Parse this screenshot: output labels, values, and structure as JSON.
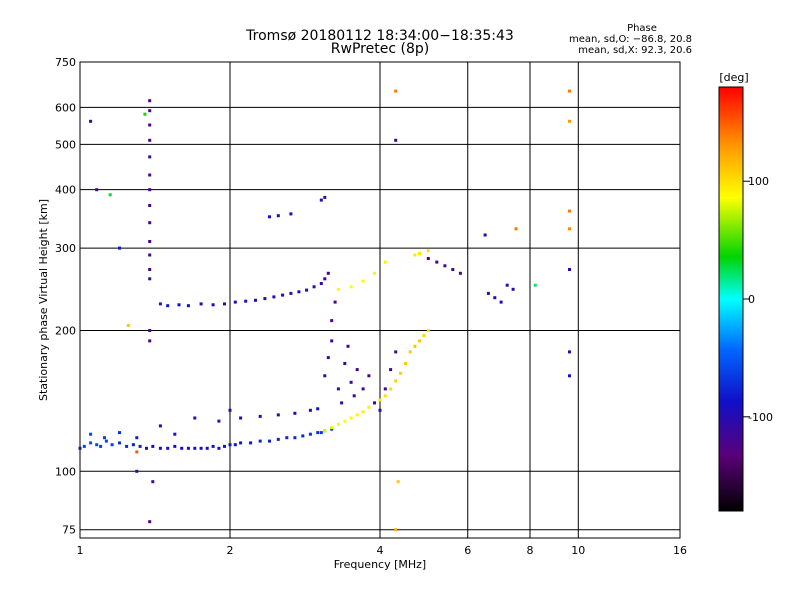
{
  "chart_data": {
    "type": "scatter",
    "title": "Tromsø 20180112 18:34:00−18:35:43",
    "subtitle": "RwPretec (8p)",
    "stats": {
      "heading": "Phase",
      "line1": "mean, sd,O: −86.8, 20.8",
      "line2": "mean, sd,X:  92.3, 20.6"
    },
    "xlabel": "Frequency [MHz]",
    "ylabel": "Stationary phase Virtual Height [km]",
    "xscale": "log",
    "yscale": "log",
    "xlim": [
      1,
      16
    ],
    "ylim": [
      72,
      750
    ],
    "xticks": [
      "1",
      "2",
      "4",
      "6",
      "8",
      "10",
      "16"
    ],
    "yticks": [
      "75",
      "100",
      "200",
      "300",
      "400",
      "500",
      "600",
      "750"
    ],
    "grid": true,
    "colorbar": {
      "title": "[deg]",
      "range": [
        -180,
        180
      ],
      "ticks": [
        "100",
        "0",
        "-100"
      ]
    },
    "series": [
      {
        "points": [
          [
            1.0,
            112,
            -65
          ],
          [
            1.02,
            113,
            -60
          ],
          [
            1.05,
            115,
            -55
          ],
          [
            1.08,
            114,
            -58
          ],
          [
            1.1,
            113,
            -62
          ],
          [
            1.13,
            116,
            -60
          ],
          [
            1.16,
            114,
            -65
          ],
          [
            1.2,
            115,
            -70
          ],
          [
            1.24,
            113,
            -75
          ],
          [
            1.28,
            114,
            -78
          ],
          [
            1.32,
            113,
            -80
          ],
          [
            1.36,
            112,
            -85
          ],
          [
            1.4,
            113,
            -88
          ],
          [
            1.45,
            112,
            -90
          ],
          [
            1.5,
            112,
            -90
          ],
          [
            1.55,
            113,
            -92
          ],
          [
            1.6,
            112,
            -90
          ],
          [
            1.65,
            112,
            -88
          ],
          [
            1.7,
            112,
            -90
          ],
          [
            1.75,
            112,
            -92
          ],
          [
            1.8,
            112,
            -90
          ],
          [
            1.85,
            113,
            -88
          ],
          [
            1.9,
            112,
            -86
          ],
          [
            1.95,
            113,
            -85
          ],
          [
            2.0,
            114,
            -84
          ],
          [
            2.05,
            114,
            -85
          ],
          [
            2.1,
            115,
            -83
          ],
          [
            2.2,
            115,
            -82
          ],
          [
            2.3,
            116,
            -80
          ],
          [
            2.4,
            116,
            -78
          ],
          [
            2.5,
            117,
            -78
          ],
          [
            2.6,
            118,
            -76
          ],
          [
            2.7,
            118,
            -76
          ],
          [
            2.8,
            119,
            -74
          ],
          [
            2.9,
            120,
            -72
          ],
          [
            3.0,
            121,
            -70
          ],
          [
            3.05,
            121,
            -70
          ],
          [
            3.1,
            122,
            -68
          ],
          [
            3.2,
            123,
            -66
          ],
          [
            1.05,
            120,
            -60
          ],
          [
            1.12,
            118,
            -62
          ],
          [
            1.2,
            121,
            -70
          ],
          [
            1.3,
            118,
            -78
          ],
          [
            1.45,
            125,
            -95
          ],
          [
            1.55,
            120,
            -88
          ],
          [
            1.7,
            130,
            -100
          ],
          [
            1.9,
            128,
            -110
          ],
          [
            2.0,
            135,
            -105
          ],
          [
            2.1,
            130,
            -100
          ],
          [
            2.3,
            131,
            -96
          ],
          [
            2.5,
            132,
            -94
          ],
          [
            2.7,
            133,
            -92
          ],
          [
            2.9,
            135,
            -90
          ],
          [
            3.0,
            136,
            -88
          ]
        ]
      },
      {
        "points": [
          [
            1.38,
            258,
            -115
          ],
          [
            1.38,
            270,
            -118
          ],
          [
            1.38,
            290,
            -120
          ],
          [
            1.38,
            310,
            -122
          ],
          [
            1.38,
            340,
            -120
          ],
          [
            1.38,
            370,
            -118
          ],
          [
            1.38,
            400,
            -116
          ],
          [
            1.38,
            430,
            -114
          ],
          [
            1.38,
            470,
            -112
          ],
          [
            1.38,
            510,
            -115
          ],
          [
            1.38,
            550,
            -120
          ],
          [
            1.38,
            590,
            -125
          ],
          [
            1.38,
            620,
            -130
          ],
          [
            1.38,
            200,
            -120
          ],
          [
            1.38,
            190,
            -125
          ]
        ]
      },
      {
        "points": [
          [
            1.45,
            228,
            -80
          ],
          [
            1.5,
            226,
            -85
          ],
          [
            1.58,
            227,
            -88
          ],
          [
            1.65,
            226,
            -90
          ],
          [
            1.75,
            228,
            -88
          ],
          [
            1.85,
            227,
            -90
          ],
          [
            1.95,
            228,
            -95
          ],
          [
            2.05,
            230,
            -96
          ],
          [
            2.15,
            231,
            -98
          ],
          [
            2.25,
            232,
            -96
          ],
          [
            2.35,
            234,
            -98
          ],
          [
            2.45,
            236,
            -100
          ],
          [
            2.55,
            238,
            -98
          ],
          [
            2.65,
            240,
            -98
          ],
          [
            2.75,
            242,
            -100
          ],
          [
            2.85,
            244,
            -100
          ],
          [
            2.95,
            248,
            -102
          ],
          [
            3.05,
            252,
            -104
          ],
          [
            3.1,
            258,
            -108
          ],
          [
            3.15,
            265,
            -112
          ],
          [
            2.4,
            350,
            -90
          ],
          [
            2.5,
            352,
            -88
          ],
          [
            2.65,
            355,
            -90
          ],
          [
            3.05,
            380,
            -100
          ],
          [
            3.1,
            385,
            -105
          ]
        ]
      },
      {
        "points": [
          [
            3.1,
            122,
            80
          ],
          [
            3.2,
            124,
            82
          ],
          [
            3.3,
            126,
            84
          ],
          [
            3.4,
            128,
            86
          ],
          [
            3.5,
            130,
            88
          ],
          [
            3.6,
            132,
            90
          ],
          [
            3.7,
            134,
            92
          ],
          [
            3.8,
            137,
            95
          ],
          [
            3.9,
            140,
            96
          ],
          [
            4.0,
            142,
            98
          ],
          [
            4.1,
            145,
            100
          ],
          [
            4.2,
            150,
            102
          ],
          [
            4.3,
            156,
            104
          ],
          [
            4.4,
            162,
            106
          ],
          [
            4.5,
            170,
            108
          ],
          [
            4.6,
            180,
            110
          ],
          [
            4.7,
            185,
            112
          ],
          [
            4.8,
            190,
            108
          ],
          [
            4.9,
            195,
            104
          ],
          [
            5.0,
            200,
            100
          ],
          [
            3.3,
            245,
            85
          ],
          [
            3.5,
            248,
            86
          ],
          [
            3.7,
            255,
            88
          ],
          [
            3.9,
            265,
            90
          ],
          [
            4.1,
            280,
            92
          ]
        ]
      },
      {
        "points": [
          [
            3.1,
            160,
            -110
          ],
          [
            3.15,
            175,
            -115
          ],
          [
            3.2,
            190,
            -118
          ],
          [
            3.2,
            210,
            -120
          ],
          [
            3.25,
            230,
            -122
          ],
          [
            3.3,
            150,
            -112
          ],
          [
            3.35,
            140,
            -108
          ],
          [
            3.4,
            170,
            -116
          ],
          [
            3.45,
            185,
            -118
          ],
          [
            3.5,
            155,
            -112
          ],
          [
            3.55,
            145,
            -110
          ],
          [
            3.6,
            165,
            -114
          ],
          [
            3.7,
            150,
            -112
          ],
          [
            3.8,
            160,
            -115
          ],
          [
            3.9,
            140,
            -108
          ],
          [
            4.0,
            135,
            -105
          ],
          [
            4.1,
            150,
            -110
          ],
          [
            4.2,
            165,
            -115
          ],
          [
            4.3,
            180,
            -118
          ]
        ]
      },
      {
        "points": [
          [
            5.0,
            285,
            -120
          ],
          [
            5.2,
            280,
            -118
          ],
          [
            5.4,
            275,
            -116
          ],
          [
            5.6,
            270,
            -114
          ],
          [
            5.8,
            265,
            -112
          ],
          [
            4.7,
            290,
            95
          ],
          [
            4.8,
            292,
            98
          ],
          [
            5.0,
            296,
            100
          ]
        ]
      },
      {
        "points": [
          [
            6.6,
            240,
            -100
          ],
          [
            6.8,
            235,
            -98
          ],
          [
            7.0,
            230,
            -96
          ],
          [
            7.2,
            250,
            -102
          ],
          [
            7.4,
            245,
            -100
          ],
          [
            6.5,
            320,
            -90
          ]
        ]
      },
      {
        "points": [
          [
            4.3,
            650,
            140
          ],
          [
            4.3,
            510,
            -110
          ],
          [
            4.3,
            75,
            120
          ],
          [
            4.35,
            95,
            110
          ],
          [
            9.6,
            650,
            140
          ],
          [
            9.6,
            560,
            130
          ],
          [
            9.6,
            330,
            135
          ],
          [
            9.6,
            360,
            140
          ],
          [
            9.6,
            270,
            -90
          ],
          [
            9.6,
            180,
            -95
          ],
          [
            9.6,
            160,
            -85
          ],
          [
            8.2,
            250,
            20
          ],
          [
            7.5,
            330,
            140
          ],
          [
            1.05,
            560,
            -115
          ],
          [
            1.15,
            390,
            30
          ],
          [
            1.08,
            400,
            -120
          ],
          [
            1.2,
            300,
            -85
          ],
          [
            1.35,
            580,
            40
          ],
          [
            1.4,
            95,
            -120
          ],
          [
            1.3,
            100,
            -110
          ],
          [
            1.3,
            110,
            150
          ],
          [
            1.25,
            205,
            110
          ],
          [
            1.38,
            78,
            -130
          ]
        ]
      }
    ]
  }
}
